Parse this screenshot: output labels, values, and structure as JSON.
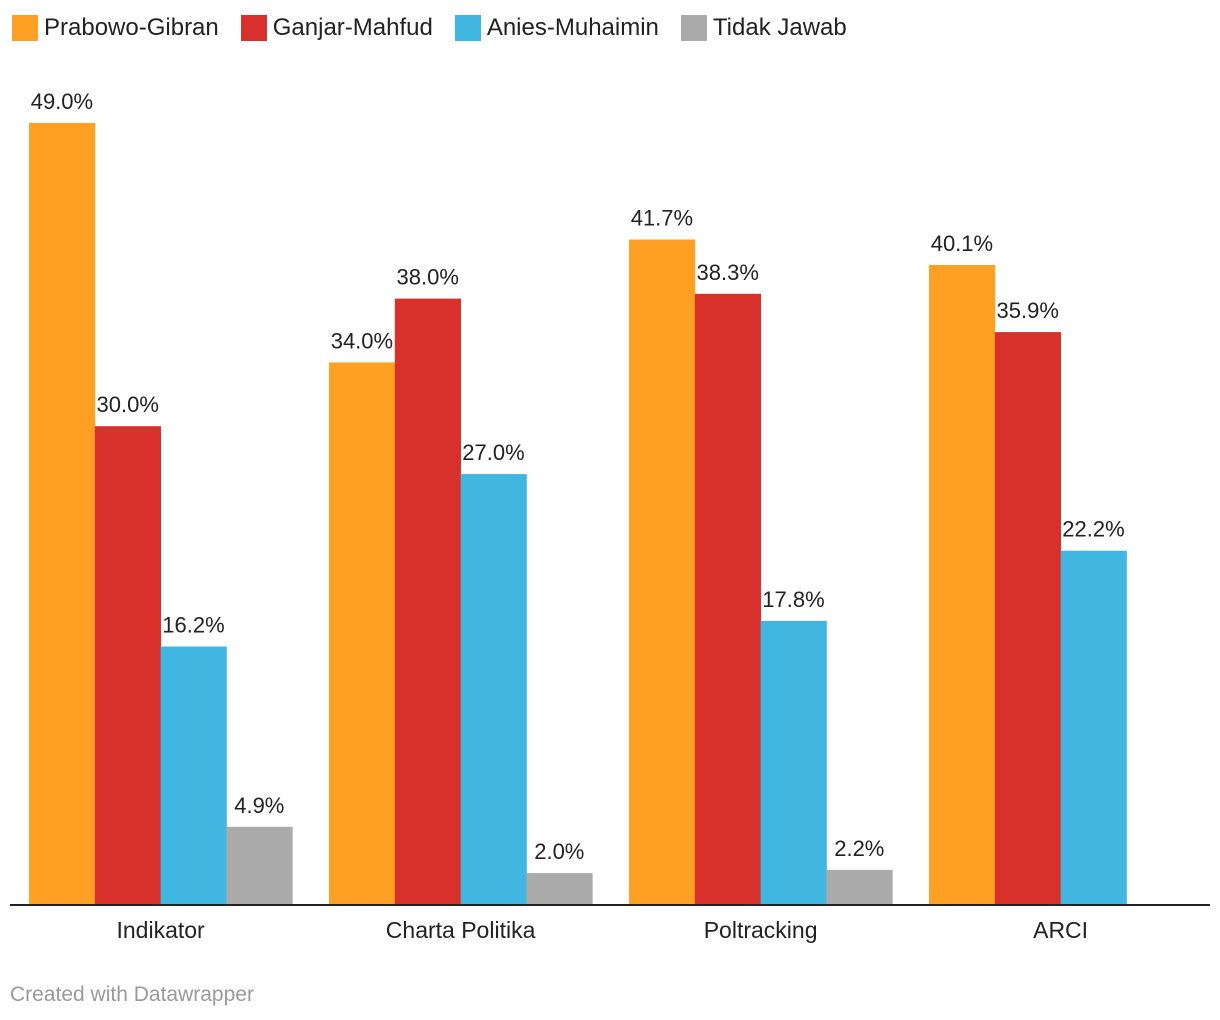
{
  "chart_data": {
    "type": "bar",
    "title": "",
    "xlabel": "",
    "ylabel": "",
    "ylim": [
      0,
      49
    ],
    "grid": false,
    "legend_position": "top-left",
    "categories": [
      "Indikator",
      "Charta Politika",
      "Poltracking",
      "ARCI"
    ],
    "series": [
      {
        "name": "Prabowo-Gibran",
        "color": "#ff9f24",
        "values": [
          49.0,
          34.0,
          41.7,
          40.1
        ],
        "labels": [
          "49.0%",
          "34.0%",
          "41.7%",
          "40.1%"
        ]
      },
      {
        "name": "Ganjar-Mahfud",
        "color": "#d8302a",
        "values": [
          30.0,
          38.0,
          38.3,
          35.9
        ],
        "labels": [
          "30.0%",
          "38.0%",
          "38.3%",
          "35.9%"
        ]
      },
      {
        "name": "Anies-Muhaimin",
        "color": "#40b6e0",
        "values": [
          16.2,
          27.0,
          17.8,
          22.2
        ],
        "labels": [
          "16.2%",
          "27.0%",
          "17.8%",
          "22.2%"
        ]
      },
      {
        "name": "Tidak Jawab",
        "color": "#aaaaaa",
        "values": [
          4.9,
          2.0,
          2.2,
          null
        ],
        "labels": [
          "4.9%",
          "2.0%",
          "2.2%",
          null
        ]
      }
    ]
  },
  "footer": {
    "credit": "Created with Datawrapper"
  }
}
